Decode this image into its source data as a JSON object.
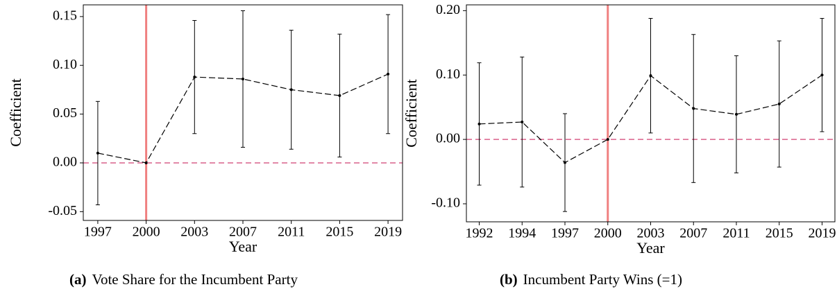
{
  "chart_data": [
    {
      "type": "line",
      "caption_label": "(a)",
      "caption": "Vote Share for the Incumbent Party",
      "xlabel": "Year",
      "ylabel": "Coefficient",
      "categories": [
        "1997",
        "2000",
        "2003",
        "2007",
        "2011",
        "2015",
        "2019"
      ],
      "values": [
        0.01,
        0,
        0.088,
        0.086,
        0.075,
        0.069,
        0.091
      ],
      "error": [
        0.053,
        null,
        0.058,
        0.07,
        0.061,
        0.063,
        0.061
      ],
      "color": "#000000",
      "ylim": [
        -0.059,
        0.162
      ],
      "yticks": [
        -0.05,
        {
          "value": 0,
          "label": "0.00"
        },
        0.05,
        {
          "value": 0.1,
          "label": "0.10"
        },
        0.15
      ],
      "vline_category": "2000",
      "vline_color": "#f08080",
      "hline": 0,
      "hline_color": "#d9608a"
    },
    {
      "type": "line",
      "caption_label": "(b)",
      "caption": "Incumbent Party Wins (=1)",
      "xlabel": "Year",
      "ylabel": "Coefficient",
      "categories": [
        "1992",
        "1994",
        "1997",
        "2000",
        "2003",
        "2007",
        "2011",
        "2015",
        "2019"
      ],
      "values": [
        0.024,
        0.027,
        -0.036,
        0,
        0.099,
        0.048,
        0.039,
        0.055,
        0.1
      ],
      "error": [
        0.095,
        0.101,
        0.076,
        null,
        0.089,
        0.115,
        0.091,
        0.098,
        0.088
      ],
      "color": "#000000",
      "ylim": [
        -0.128,
        0.209
      ],
      "yticks": [
        {
          "value": -0.1,
          "label": "-0.10"
        },
        {
          "value": 0,
          "label": "0.00"
        },
        {
          "value": 0.1,
          "label": "0.10"
        },
        {
          "value": 0.2,
          "label": "0.20"
        }
      ],
      "vline_category": "2000",
      "vline_color": "#f08080",
      "hline": 0,
      "hline_color": "#d9608a"
    }
  ]
}
